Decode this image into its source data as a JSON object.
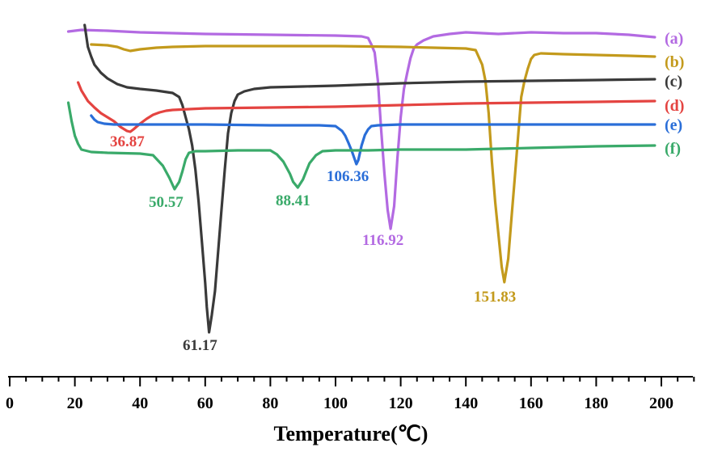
{
  "chart_data": {
    "type": "line",
    "title": "",
    "xlabel": "Temperature(℃)",
    "ylabel": "",
    "xlim": [
      0,
      210
    ],
    "x_ticks": [
      0,
      20,
      40,
      60,
      80,
      100,
      120,
      140,
      160,
      180,
      200
    ],
    "grid": false,
    "series": [
      {
        "name": "(a)",
        "color": "#b36ae2",
        "points": [
          [
            18,
            39
          ],
          [
            22,
            37
          ],
          [
            30,
            38
          ],
          [
            40,
            40
          ],
          [
            60,
            42
          ],
          [
            80,
            43
          ],
          [
            100,
            44
          ],
          [
            108,
            45
          ],
          [
            110,
            47
          ],
          [
            111,
            55
          ],
          [
            112,
            65
          ],
          [
            113,
            100
          ],
          [
            114,
            160
          ],
          [
            115,
            215
          ],
          [
            116,
            260
          ],
          [
            116.9,
            283
          ],
          [
            118,
            255
          ],
          [
            119,
            195
          ],
          [
            120,
            145
          ],
          [
            121,
            110
          ],
          [
            122,
            90
          ],
          [
            123,
            72
          ],
          [
            124,
            60
          ],
          [
            125,
            55
          ],
          [
            127,
            50
          ],
          [
            130,
            45
          ],
          [
            135,
            42
          ],
          [
            140,
            40
          ],
          [
            150,
            42
          ],
          [
            160,
            40
          ],
          [
            170,
            41
          ],
          [
            180,
            41
          ],
          [
            190,
            43
          ],
          [
            198,
            46
          ]
        ],
        "peak": {
          "x": 116.92,
          "label": "116.92"
        }
      },
      {
        "name": "(b)",
        "color": "#c39a1c",
        "points": [
          [
            25,
            55
          ],
          [
            30,
            56
          ],
          [
            33,
            58
          ],
          [
            35,
            61
          ],
          [
            37,
            63
          ],
          [
            40,
            61
          ],
          [
            45,
            59
          ],
          [
            50,
            58
          ],
          [
            60,
            57
          ],
          [
            80,
            57
          ],
          [
            100,
            57
          ],
          [
            120,
            58
          ],
          [
            130,
            59
          ],
          [
            140,
            60
          ],
          [
            143,
            62
          ],
          [
            145,
            80
          ],
          [
            146,
            100
          ],
          [
            147,
            140
          ],
          [
            148,
            200
          ],
          [
            149,
            250
          ],
          [
            150,
            290
          ],
          [
            151,
            330
          ],
          [
            151.8,
            349
          ],
          [
            153,
            320
          ],
          [
            154,
            270
          ],
          [
            155,
            220
          ],
          [
            156,
            170
          ],
          [
            157,
            120
          ],
          [
            158,
            100
          ],
          [
            159,
            85
          ],
          [
            160,
            73
          ],
          [
            161,
            68
          ],
          [
            163,
            66
          ],
          [
            170,
            67
          ],
          [
            180,
            68
          ],
          [
            190,
            69
          ],
          [
            198,
            70
          ]
        ],
        "peak": {
          "x": 151.83,
          "label": "151.83"
        }
      },
      {
        "name": "(c)",
        "color": "#3a3a3a",
        "points": [
          [
            23,
            31
          ],
          [
            24,
            58
          ],
          [
            25,
            70
          ],
          [
            26,
            80
          ],
          [
            28,
            90
          ],
          [
            30,
            97
          ],
          [
            33,
            104
          ],
          [
            36,
            108
          ],
          [
            40,
            110
          ],
          [
            45,
            112
          ],
          [
            50,
            115
          ],
          [
            52,
            120
          ],
          [
            53,
            130
          ],
          [
            54,
            145
          ],
          [
            55,
            160
          ],
          [
            56,
            180
          ],
          [
            57,
            210
          ],
          [
            58,
            250
          ],
          [
            59,
            300
          ],
          [
            60,
            350
          ],
          [
            60.5,
            380
          ],
          [
            61.2,
            411
          ],
          [
            62,
            390
          ],
          [
            63,
            360
          ],
          [
            64,
            310
          ],
          [
            65,
            260
          ],
          [
            66,
            210
          ],
          [
            67,
            165
          ],
          [
            68,
            140
          ],
          [
            69,
            125
          ],
          [
            70,
            117
          ],
          [
            72,
            113
          ],
          [
            75,
            110
          ],
          [
            80,
            108
          ],
          [
            90,
            107
          ],
          [
            100,
            106
          ],
          [
            120,
            103
          ],
          [
            140,
            101
          ],
          [
            160,
            100
          ],
          [
            180,
            99
          ],
          [
            198,
            98
          ]
        ],
        "peak": {
          "x": 61.17,
          "label": "61.17"
        }
      },
      {
        "name": "(d)",
        "color": "#e44441",
        "points": [
          [
            21,
            102
          ],
          [
            22,
            112
          ],
          [
            24,
            125
          ],
          [
            26,
            133
          ],
          [
            28,
            140
          ],
          [
            30,
            145
          ],
          [
            32,
            150
          ],
          [
            34,
            157
          ],
          [
            36,
            162
          ],
          [
            37,
            163
          ],
          [
            38,
            160
          ],
          [
            40,
            153
          ],
          [
            42,
            147
          ],
          [
            44,
            142
          ],
          [
            46,
            139
          ],
          [
            48,
            137
          ],
          [
            50,
            136
          ],
          [
            60,
            134
          ],
          [
            80,
            133
          ],
          [
            100,
            132
          ],
          [
            120,
            130
          ],
          [
            140,
            128
          ],
          [
            160,
            127
          ],
          [
            180,
            126
          ],
          [
            198,
            125
          ]
        ],
        "peak": {
          "x": 36.87,
          "label": "36.87"
        }
      },
      {
        "name": "(e)",
        "color": "#2a6ed8",
        "points": [
          [
            25,
            143
          ],
          [
            26,
            148
          ],
          [
            27,
            151
          ],
          [
            29,
            153
          ],
          [
            32,
            154
          ],
          [
            40,
            154
          ],
          [
            60,
            154
          ],
          [
            80,
            155
          ],
          [
            95,
            155
          ],
          [
            100,
            156
          ],
          [
            102,
            162
          ],
          [
            103,
            168
          ],
          [
            104,
            177
          ],
          [
            105,
            187
          ],
          [
            106.4,
            203
          ],
          [
            107,
            198
          ],
          [
            108,
            180
          ],
          [
            109,
            167
          ],
          [
            110,
            160
          ],
          [
            111,
            156
          ],
          [
            113,
            155
          ],
          [
            120,
            154
          ],
          [
            140,
            154
          ],
          [
            160,
            154
          ],
          [
            180,
            154
          ],
          [
            198,
            154
          ]
        ],
        "peak": {
          "x": 106.36,
          "label": "106.36"
        }
      },
      {
        "name": "(f)",
        "color": "#3aaa6a",
        "points": [
          [
            18,
            127
          ],
          [
            19,
            150
          ],
          [
            20,
            168
          ],
          [
            21,
            178
          ],
          [
            22,
            185
          ],
          [
            25,
            188
          ],
          [
            30,
            189
          ],
          [
            40,
            190
          ],
          [
            44,
            192
          ],
          [
            47,
            205
          ],
          [
            49,
            220
          ],
          [
            50.6,
            234
          ],
          [
            52,
            225
          ],
          [
            53,
            212
          ],
          [
            54,
            197
          ],
          [
            55,
            189
          ],
          [
            57,
            187
          ],
          [
            60,
            187
          ],
          [
            70,
            186
          ],
          [
            80,
            186
          ],
          [
            82,
            191
          ],
          [
            84,
            200
          ],
          [
            86,
            215
          ],
          [
            87,
            225
          ],
          [
            88.4,
            232
          ],
          [
            90,
            222
          ],
          [
            91,
            212
          ],
          [
            92,
            202
          ],
          [
            94,
            192
          ],
          [
            96,
            187
          ],
          [
            100,
            186
          ],
          [
            110,
            186
          ],
          [
            120,
            185
          ],
          [
            140,
            185
          ],
          [
            160,
            183
          ],
          [
            180,
            181
          ],
          [
            198,
            180
          ]
        ],
        "peak": {
          "x": 50.57,
          "label": "50.57"
        },
        "peak2": {
          "x": 88.41,
          "label": "88.41"
        }
      }
    ]
  }
}
